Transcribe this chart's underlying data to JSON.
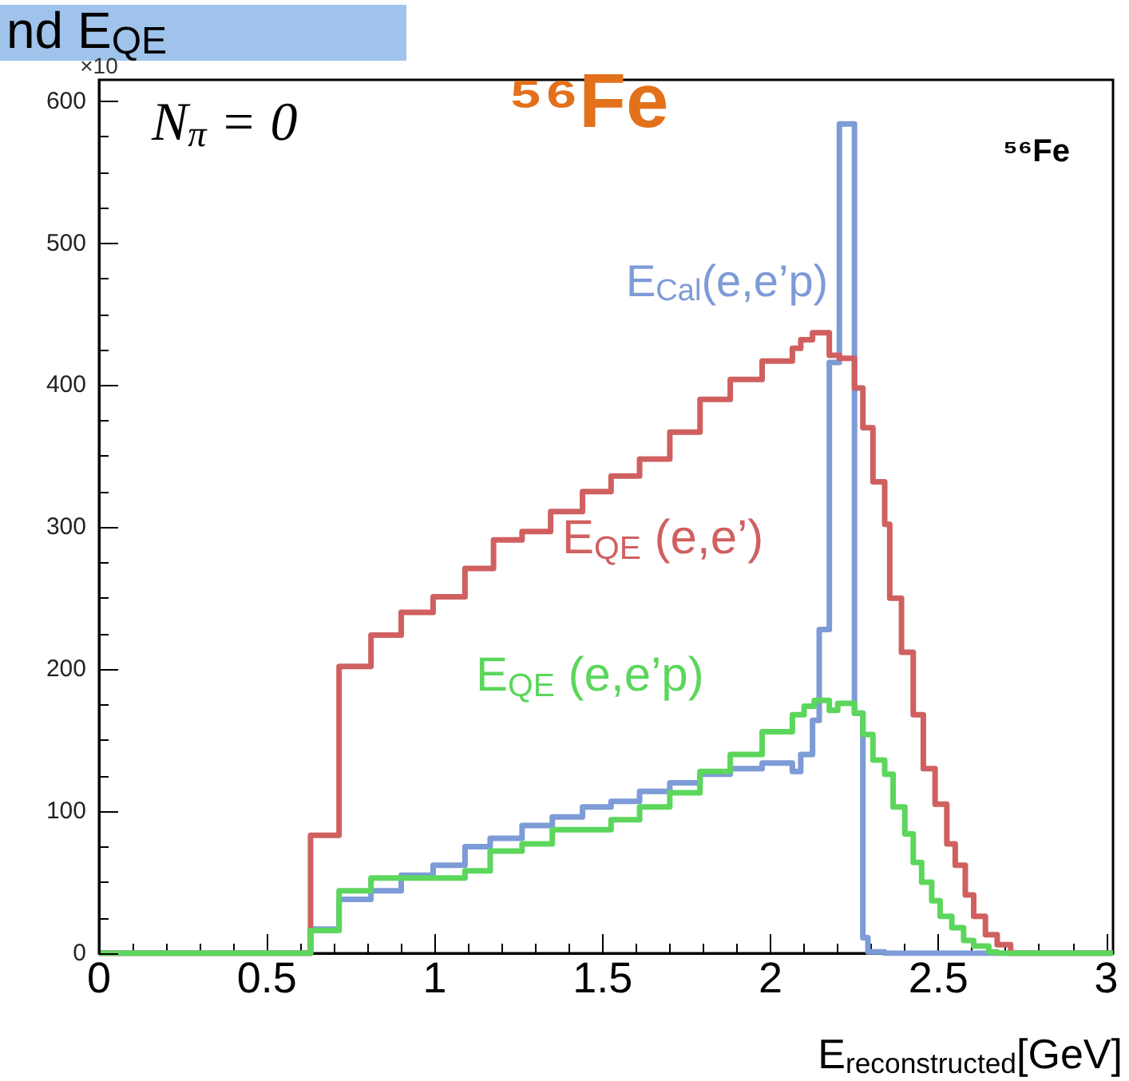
{
  "chart_data": {
    "type": "step",
    "title": "nd E$_{QE}$",
    "xlabel": "E$_{reconstructed}$[GeV]",
    "annotations": [
      "N$_{π}$ = 0",
      "⁵⁶Fe",
      "⁵⁶Fe"
    ],
    "ylabel": "×10",
    "xlim": [
      0,
      3.02
    ],
    "xticks": [
      0,
      0.5,
      1,
      1.5,
      2,
      2.5,
      3
    ],
    "ylim": [
      0,
      615
    ],
    "yticks": [
      0,
      100,
      200,
      300,
      400,
      500,
      600
    ],
    "series": [
      {
        "name": "E$_{Cal}$(e,e’p)",
        "color": "#7d9bd6",
        "x": [
          0,
          0.63,
          0.715,
          0.81,
          0.9,
          0.995,
          1.09,
          1.165,
          1.26,
          1.35,
          1.44,
          1.525,
          1.61,
          1.7,
          1.79,
          1.88,
          1.975,
          2.065,
          2.09,
          2.125,
          2.145,
          2.175,
          2.205,
          2.25,
          2.275,
          2.29,
          2.34,
          3.02
        ],
        "values": [
          0,
          17,
          38,
          44,
          55,
          62,
          75,
          81,
          90,
          96,
          103,
          107,
          114,
          120,
          126,
          130,
          134,
          128,
          140,
          164,
          228,
          416,
          584,
          169,
          11,
          1,
          0,
          0
        ]
      },
      {
        "name": "E$_{QE}$ (e,e’)",
        "color": "#d06060",
        "x": [
          0,
          0.63,
          0.715,
          0.81,
          0.9,
          0.995,
          1.09,
          1.175,
          1.26,
          1.345,
          1.44,
          1.525,
          1.61,
          1.7,
          1.79,
          1.88,
          1.975,
          2.065,
          2.09,
          2.125,
          2.175,
          2.205,
          2.25,
          2.275,
          2.305,
          2.34,
          2.355,
          2.39,
          2.425,
          2.455,
          2.49,
          2.525,
          2.55,
          2.58,
          2.605,
          2.64,
          2.675,
          2.715,
          3.02
        ],
        "values": [
          0,
          83,
          202,
          224,
          240,
          251,
          271,
          291,
          297,
          311,
          325,
          336,
          348,
          367,
          390,
          404,
          417,
          426,
          432,
          437,
          421,
          419,
          398,
          370,
          332,
          302,
          250,
          212,
          168,
          130,
          105,
          77,
          62,
          41,
          26,
          13,
          6,
          0,
          0
        ]
      },
      {
        "name": "E$_{QE}$ (e,e’p)",
        "color": "#5cd65c",
        "x": [
          0,
          0.63,
          0.715,
          0.81,
          1.09,
          1.165,
          1.26,
          1.35,
          1.525,
          1.61,
          1.7,
          1.79,
          1.88,
          1.975,
          2.065,
          2.1,
          2.13,
          2.175,
          2.2,
          2.25,
          2.275,
          2.305,
          2.34,
          2.365,
          2.4,
          2.425,
          2.45,
          2.48,
          2.505,
          2.54,
          2.575,
          2.605,
          2.65,
          2.675,
          3.02
        ],
        "values": [
          0,
          16,
          44,
          53,
          58,
          72,
          77,
          87,
          94,
          103,
          113,
          128,
          140,
          156,
          168,
          174,
          178,
          171,
          176,
          169,
          154,
          136,
          126,
          103,
          84,
          64,
          50,
          37,
          26,
          18,
          9,
          5,
          1,
          0,
          0
        ]
      }
    ]
  }
}
